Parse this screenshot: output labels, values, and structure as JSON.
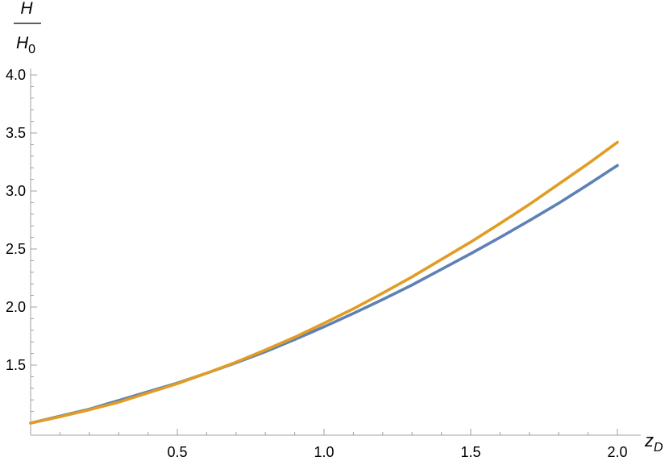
{
  "chart_data": {
    "type": "line",
    "title": "",
    "xlabel": {
      "base": "z",
      "subscript": "D"
    },
    "ylabel": {
      "numerator": "H",
      "denominator_base": "H",
      "denominator_subscript": "0"
    },
    "xlim": [
      0,
      2.0
    ],
    "ylim": [
      1.0,
      4.0
    ],
    "x_ticks": [
      {
        "value": 0.5,
        "label": "0.5"
      },
      {
        "value": 1.0,
        "label": "1.0"
      },
      {
        "value": 1.5,
        "label": "1.5"
      },
      {
        "value": 2.0,
        "label": "2.0"
      }
    ],
    "y_ticks": [
      {
        "value": 1.5,
        "label": "1.5"
      },
      {
        "value": 2.0,
        "label": "2.0"
      },
      {
        "value": 2.5,
        "label": "2.5"
      },
      {
        "value": 3.0,
        "label": "3.0"
      },
      {
        "value": 3.5,
        "label": "3.5"
      },
      {
        "value": 4.0,
        "label": "4.0"
      }
    ],
    "grid": false,
    "legend": "none",
    "series": [
      {
        "color": "#5e81b5",
        "x": [
          0,
          0.1,
          0.2,
          0.3,
          0.4,
          0.5,
          0.6,
          0.7,
          0.8,
          0.9,
          1.0,
          1.1,
          1.2,
          1.3,
          1.4,
          1.5,
          1.6,
          1.7,
          1.8,
          1.9,
          2.0
        ],
        "y": [
          1.0,
          1.06,
          1.12,
          1.195,
          1.27,
          1.345,
          1.43,
          1.52,
          1.615,
          1.72,
          1.83,
          1.945,
          2.065,
          2.19,
          2.325,
          2.46,
          2.6,
          2.745,
          2.895,
          3.055,
          3.22
        ]
      },
      {
        "color": "#e19c24",
        "x": [
          0,
          0.1,
          0.2,
          0.3,
          0.4,
          0.5,
          0.6,
          0.7,
          0.8,
          0.9,
          1.0,
          1.1,
          1.2,
          1.3,
          1.4,
          1.5,
          1.6,
          1.7,
          1.8,
          1.9,
          2.0
        ],
        "y": [
          1.0,
          1.055,
          1.115,
          1.18,
          1.26,
          1.34,
          1.43,
          1.525,
          1.63,
          1.74,
          1.86,
          1.985,
          2.12,
          2.26,
          2.41,
          2.56,
          2.72,
          2.885,
          3.06,
          3.235,
          3.42
        ]
      }
    ]
  }
}
